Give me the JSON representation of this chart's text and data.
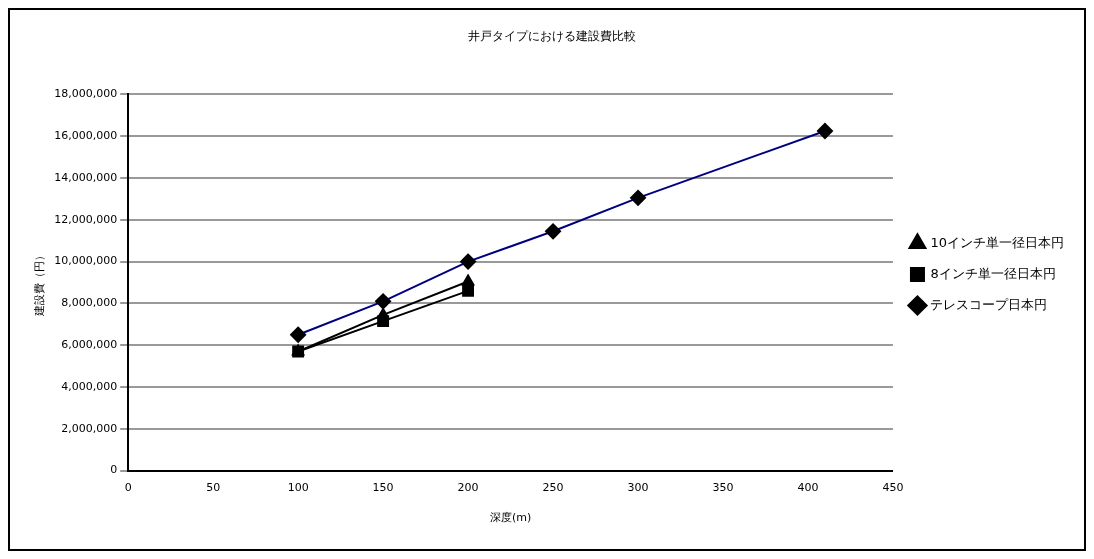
{
  "chart_data": {
    "type": "line",
    "title": "井戸タイプにおける建設費比較",
    "xlabel": "深度(m)",
    "ylabel": "建設費（円）",
    "xlim": [
      0,
      450
    ],
    "xticks": [
      0,
      50,
      100,
      150,
      200,
      250,
      300,
      350,
      400,
      450
    ],
    "ylim": [
      0,
      18000000
    ],
    "yticks": [
      0,
      {
        "value": 2000000,
        "label": "2,000,000"
      },
      {
        "value": 4000000,
        "label": "4,000,000"
      },
      {
        "value": 6000000,
        "label": "6,000,000"
      },
      {
        "value": 8000000,
        "label": "8,000,000"
      },
      {
        "value": 10000000,
        "label": "10,000,000"
      },
      {
        "value": 12000000,
        "label": "12,000,000"
      },
      {
        "value": 14000000,
        "label": "14,000,000"
      },
      {
        "value": 16000000,
        "label": "16,000,000"
      },
      {
        "value": 18000000,
        "label": "18,000,000"
      }
    ],
    "grid": "y",
    "legend": "right",
    "series": [
      {
        "name": "テレスコープ日本円",
        "color": "#000080",
        "marker": "diamond",
        "x": [
          100,
          150,
          200,
          250,
          300,
          410
        ],
        "values": [
          6500000,
          8100000,
          10000000,
          11450000,
          13050000,
          16250000
        ]
      },
      {
        "name": "8インチ単一径日本円",
        "color": "#000000",
        "marker": "square",
        "x": [
          100,
          150,
          200
        ],
        "values": [
          5700000,
          7150000,
          8600000
        ]
      },
      {
        "name": "10インチ単一径日本円",
        "color": "#000000",
        "marker": "triangle",
        "x": [
          100,
          150,
          200
        ],
        "values": [
          5700000,
          7450000,
          9050000
        ]
      }
    ]
  }
}
